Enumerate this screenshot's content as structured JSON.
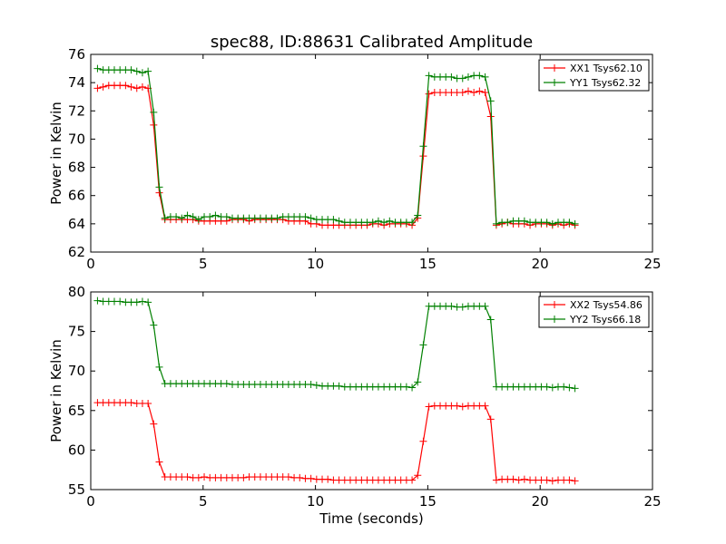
{
  "chart_data": [
    {
      "type": "line",
      "title": "spec88, ID:88631 Calibrated Amplitude",
      "xlabel": "",
      "ylabel": "Power in Kelvin",
      "xlim": [
        0,
        25
      ],
      "ylim": [
        62,
        76
      ],
      "xticks": [
        0,
        5,
        10,
        15,
        20,
        25
      ],
      "yticks": [
        62,
        64,
        66,
        68,
        70,
        72,
        74,
        76
      ],
      "grid": false,
      "legend_position": "top-right",
      "series": [
        {
          "name": "XX1 Tsys62.10",
          "color": "#ff0000",
          "marker": "plus",
          "x": [
            0.3,
            0.55,
            0.8,
            1.05,
            1.3,
            1.55,
            1.8,
            2.05,
            2.3,
            2.55,
            2.8,
            3.05,
            3.3,
            3.55,
            3.8,
            4.05,
            4.3,
            4.55,
            4.8,
            5.05,
            5.3,
            5.55,
            5.8,
            6.05,
            6.3,
            6.55,
            6.8,
            7.05,
            7.3,
            7.55,
            7.8,
            8.05,
            8.3,
            8.55,
            8.8,
            9.05,
            9.3,
            9.55,
            9.8,
            10.05,
            10.3,
            10.55,
            10.8,
            11.05,
            11.3,
            11.55,
            11.8,
            12.05,
            12.3,
            12.55,
            12.8,
            13.05,
            13.3,
            13.55,
            13.8,
            14.05,
            14.3,
            14.55,
            14.8,
            15.05,
            15.3,
            15.55,
            15.8,
            16.05,
            16.3,
            16.55,
            16.8,
            17.05,
            17.3,
            17.55,
            17.8,
            18.05,
            18.3,
            18.55,
            18.8,
            19.05,
            19.3,
            19.55,
            19.8,
            20.05,
            20.3,
            20.55,
            20.8,
            21.05,
            21.3,
            21.55
          ],
          "y": [
            73.6,
            73.7,
            73.8,
            73.8,
            73.8,
            73.8,
            73.7,
            73.6,
            73.7,
            73.6,
            71.0,
            66.2,
            64.3,
            64.3,
            64.3,
            64.3,
            64.3,
            64.3,
            64.2,
            64.2,
            64.2,
            64.2,
            64.2,
            64.2,
            64.3,
            64.3,
            64.3,
            64.2,
            64.3,
            64.3,
            64.3,
            64.3,
            64.3,
            64.3,
            64.2,
            64.2,
            64.2,
            64.2,
            64.0,
            64.0,
            63.9,
            63.9,
            63.9,
            63.9,
            63.9,
            63.9,
            63.9,
            63.9,
            63.9,
            64.0,
            64.0,
            63.9,
            64.0,
            64.0,
            64.0,
            64.0,
            63.9,
            64.4,
            68.8,
            73.2,
            73.3,
            73.3,
            73.3,
            73.3,
            73.3,
            73.3,
            73.4,
            73.3,
            73.4,
            73.3,
            71.6,
            63.9,
            64.0,
            64.1,
            64.0,
            64.0,
            64.0,
            63.9,
            64.0,
            64.0,
            64.0,
            63.9,
            64.0,
            63.9,
            64.0,
            63.9
          ]
        },
        {
          "name": "YY1 Tsys62.32",
          "color": "#008000",
          "marker": "plus",
          "x": [
            0.3,
            0.55,
            0.8,
            1.05,
            1.3,
            1.55,
            1.8,
            2.05,
            2.3,
            2.55,
            2.8,
            3.05,
            3.3,
            3.55,
            3.8,
            4.05,
            4.3,
            4.55,
            4.8,
            5.05,
            5.3,
            5.55,
            5.8,
            6.05,
            6.3,
            6.55,
            6.8,
            7.05,
            7.3,
            7.55,
            7.8,
            8.05,
            8.3,
            8.55,
            8.8,
            9.05,
            9.3,
            9.55,
            9.8,
            10.05,
            10.3,
            10.55,
            10.8,
            11.05,
            11.3,
            11.55,
            11.8,
            12.05,
            12.3,
            12.55,
            12.8,
            13.05,
            13.3,
            13.55,
            13.8,
            14.05,
            14.3,
            14.55,
            14.8,
            15.05,
            15.3,
            15.55,
            15.8,
            16.05,
            16.3,
            16.55,
            16.8,
            17.05,
            17.3,
            17.55,
            17.8,
            18.05,
            18.3,
            18.55,
            18.8,
            19.05,
            19.3,
            19.55,
            19.8,
            20.05,
            20.3,
            20.55,
            20.8,
            21.05,
            21.3,
            21.55
          ],
          "y": [
            75.0,
            74.9,
            74.9,
            74.9,
            74.9,
            74.9,
            74.9,
            74.8,
            74.7,
            74.8,
            71.9,
            66.6,
            64.4,
            64.5,
            64.5,
            64.4,
            64.6,
            64.5,
            64.3,
            64.5,
            64.5,
            64.6,
            64.5,
            64.5,
            64.4,
            64.4,
            64.4,
            64.4,
            64.4,
            64.4,
            64.4,
            64.4,
            64.4,
            64.5,
            64.5,
            64.5,
            64.5,
            64.5,
            64.4,
            64.3,
            64.3,
            64.3,
            64.3,
            64.2,
            64.1,
            64.1,
            64.1,
            64.1,
            64.1,
            64.1,
            64.2,
            64.1,
            64.2,
            64.1,
            64.1,
            64.1,
            64.1,
            64.6,
            69.5,
            74.5,
            74.4,
            74.4,
            74.4,
            74.4,
            74.3,
            74.3,
            74.4,
            74.5,
            74.5,
            74.4,
            72.7,
            64.0,
            64.1,
            64.1,
            64.2,
            64.2,
            64.2,
            64.1,
            64.1,
            64.1,
            64.1,
            64.0,
            64.1,
            64.1,
            64.1,
            64.0
          ]
        }
      ]
    },
    {
      "type": "line",
      "title": "",
      "xlabel": "Time (seconds)",
      "ylabel": "Power in Kelvin",
      "xlim": [
        0,
        25
      ],
      "ylim": [
        55,
        80
      ],
      "xticks": [
        0,
        5,
        10,
        15,
        20,
        25
      ],
      "yticks": [
        55,
        60,
        65,
        70,
        75,
        80
      ],
      "grid": false,
      "legend_position": "top-right",
      "series": [
        {
          "name": "XX2 Tsys54.86",
          "color": "#ff0000",
          "marker": "plus",
          "x": [
            0.3,
            0.55,
            0.8,
            1.05,
            1.3,
            1.55,
            1.8,
            2.05,
            2.3,
            2.55,
            2.8,
            3.05,
            3.3,
            3.55,
            3.8,
            4.05,
            4.3,
            4.55,
            4.8,
            5.05,
            5.3,
            5.55,
            5.8,
            6.05,
            6.3,
            6.55,
            6.8,
            7.05,
            7.3,
            7.55,
            7.8,
            8.05,
            8.3,
            8.55,
            8.8,
            9.05,
            9.3,
            9.55,
            9.8,
            10.05,
            10.3,
            10.55,
            10.8,
            11.05,
            11.3,
            11.55,
            11.8,
            12.05,
            12.3,
            12.55,
            12.8,
            13.05,
            13.3,
            13.55,
            13.8,
            14.05,
            14.3,
            14.55,
            14.8,
            15.05,
            15.3,
            15.55,
            15.8,
            16.05,
            16.3,
            16.55,
            16.8,
            17.05,
            17.3,
            17.55,
            17.8,
            18.05,
            18.3,
            18.55,
            18.8,
            19.05,
            19.3,
            19.55,
            19.8,
            20.05,
            20.3,
            20.55,
            20.8,
            21.05,
            21.3,
            21.55
          ],
          "y": [
            66.0,
            66.0,
            66.0,
            66.0,
            66.0,
            66.0,
            66.0,
            65.9,
            65.9,
            65.9,
            63.3,
            58.5,
            56.6,
            56.6,
            56.6,
            56.6,
            56.6,
            56.5,
            56.5,
            56.6,
            56.5,
            56.5,
            56.5,
            56.5,
            56.5,
            56.5,
            56.5,
            56.6,
            56.6,
            56.6,
            56.6,
            56.6,
            56.6,
            56.6,
            56.6,
            56.5,
            56.5,
            56.4,
            56.4,
            56.3,
            56.3,
            56.3,
            56.2,
            56.2,
            56.2,
            56.2,
            56.2,
            56.2,
            56.2,
            56.2,
            56.2,
            56.2,
            56.2,
            56.2,
            56.2,
            56.2,
            56.2,
            56.8,
            61.1,
            65.5,
            65.6,
            65.6,
            65.6,
            65.6,
            65.6,
            65.5,
            65.6,
            65.6,
            65.6,
            65.6,
            63.9,
            56.2,
            56.3,
            56.3,
            56.3,
            56.2,
            56.3,
            56.2,
            56.2,
            56.2,
            56.2,
            56.1,
            56.2,
            56.2,
            56.2,
            56.1
          ]
        },
        {
          "name": "YY2 Tsys66.18",
          "color": "#008000",
          "marker": "plus",
          "x": [
            0.3,
            0.55,
            0.8,
            1.05,
            1.3,
            1.55,
            1.8,
            2.05,
            2.3,
            2.55,
            2.8,
            3.05,
            3.3,
            3.55,
            3.8,
            4.05,
            4.3,
            4.55,
            4.8,
            5.05,
            5.3,
            5.55,
            5.8,
            6.05,
            6.3,
            6.55,
            6.8,
            7.05,
            7.3,
            7.55,
            7.8,
            8.05,
            8.3,
            8.55,
            8.8,
            9.05,
            9.3,
            9.55,
            9.8,
            10.05,
            10.3,
            10.55,
            10.8,
            11.05,
            11.3,
            11.55,
            11.8,
            12.05,
            12.3,
            12.55,
            12.8,
            13.05,
            13.3,
            13.55,
            13.8,
            14.05,
            14.3,
            14.55,
            14.8,
            15.05,
            15.3,
            15.55,
            15.8,
            16.05,
            16.3,
            16.55,
            16.8,
            17.05,
            17.3,
            17.55,
            17.8,
            18.05,
            18.3,
            18.55,
            18.8,
            19.05,
            19.3,
            19.55,
            19.8,
            20.05,
            20.3,
            20.55,
            20.8,
            21.05,
            21.3,
            21.55
          ],
          "y": [
            78.9,
            78.8,
            78.8,
            78.8,
            78.8,
            78.7,
            78.7,
            78.7,
            78.8,
            78.7,
            75.8,
            70.5,
            68.4,
            68.4,
            68.4,
            68.4,
            68.4,
            68.4,
            68.4,
            68.4,
            68.4,
            68.4,
            68.4,
            68.4,
            68.3,
            68.3,
            68.3,
            68.3,
            68.3,
            68.3,
            68.3,
            68.3,
            68.3,
            68.3,
            68.3,
            68.3,
            68.3,
            68.3,
            68.3,
            68.2,
            68.1,
            68.1,
            68.1,
            68.1,
            68.0,
            68.0,
            68.0,
            68.0,
            68.0,
            68.0,
            68.0,
            68.0,
            68.0,
            68.0,
            68.0,
            68.0,
            67.9,
            68.6,
            73.3,
            78.2,
            78.2,
            78.2,
            78.2,
            78.2,
            78.1,
            78.1,
            78.2,
            78.2,
            78.2,
            78.2,
            76.5,
            68.0,
            68.0,
            68.0,
            68.0,
            68.0,
            68.0,
            68.0,
            68.0,
            68.0,
            68.0,
            67.9,
            68.0,
            68.0,
            67.9,
            67.8
          ]
        }
      ]
    }
  ]
}
